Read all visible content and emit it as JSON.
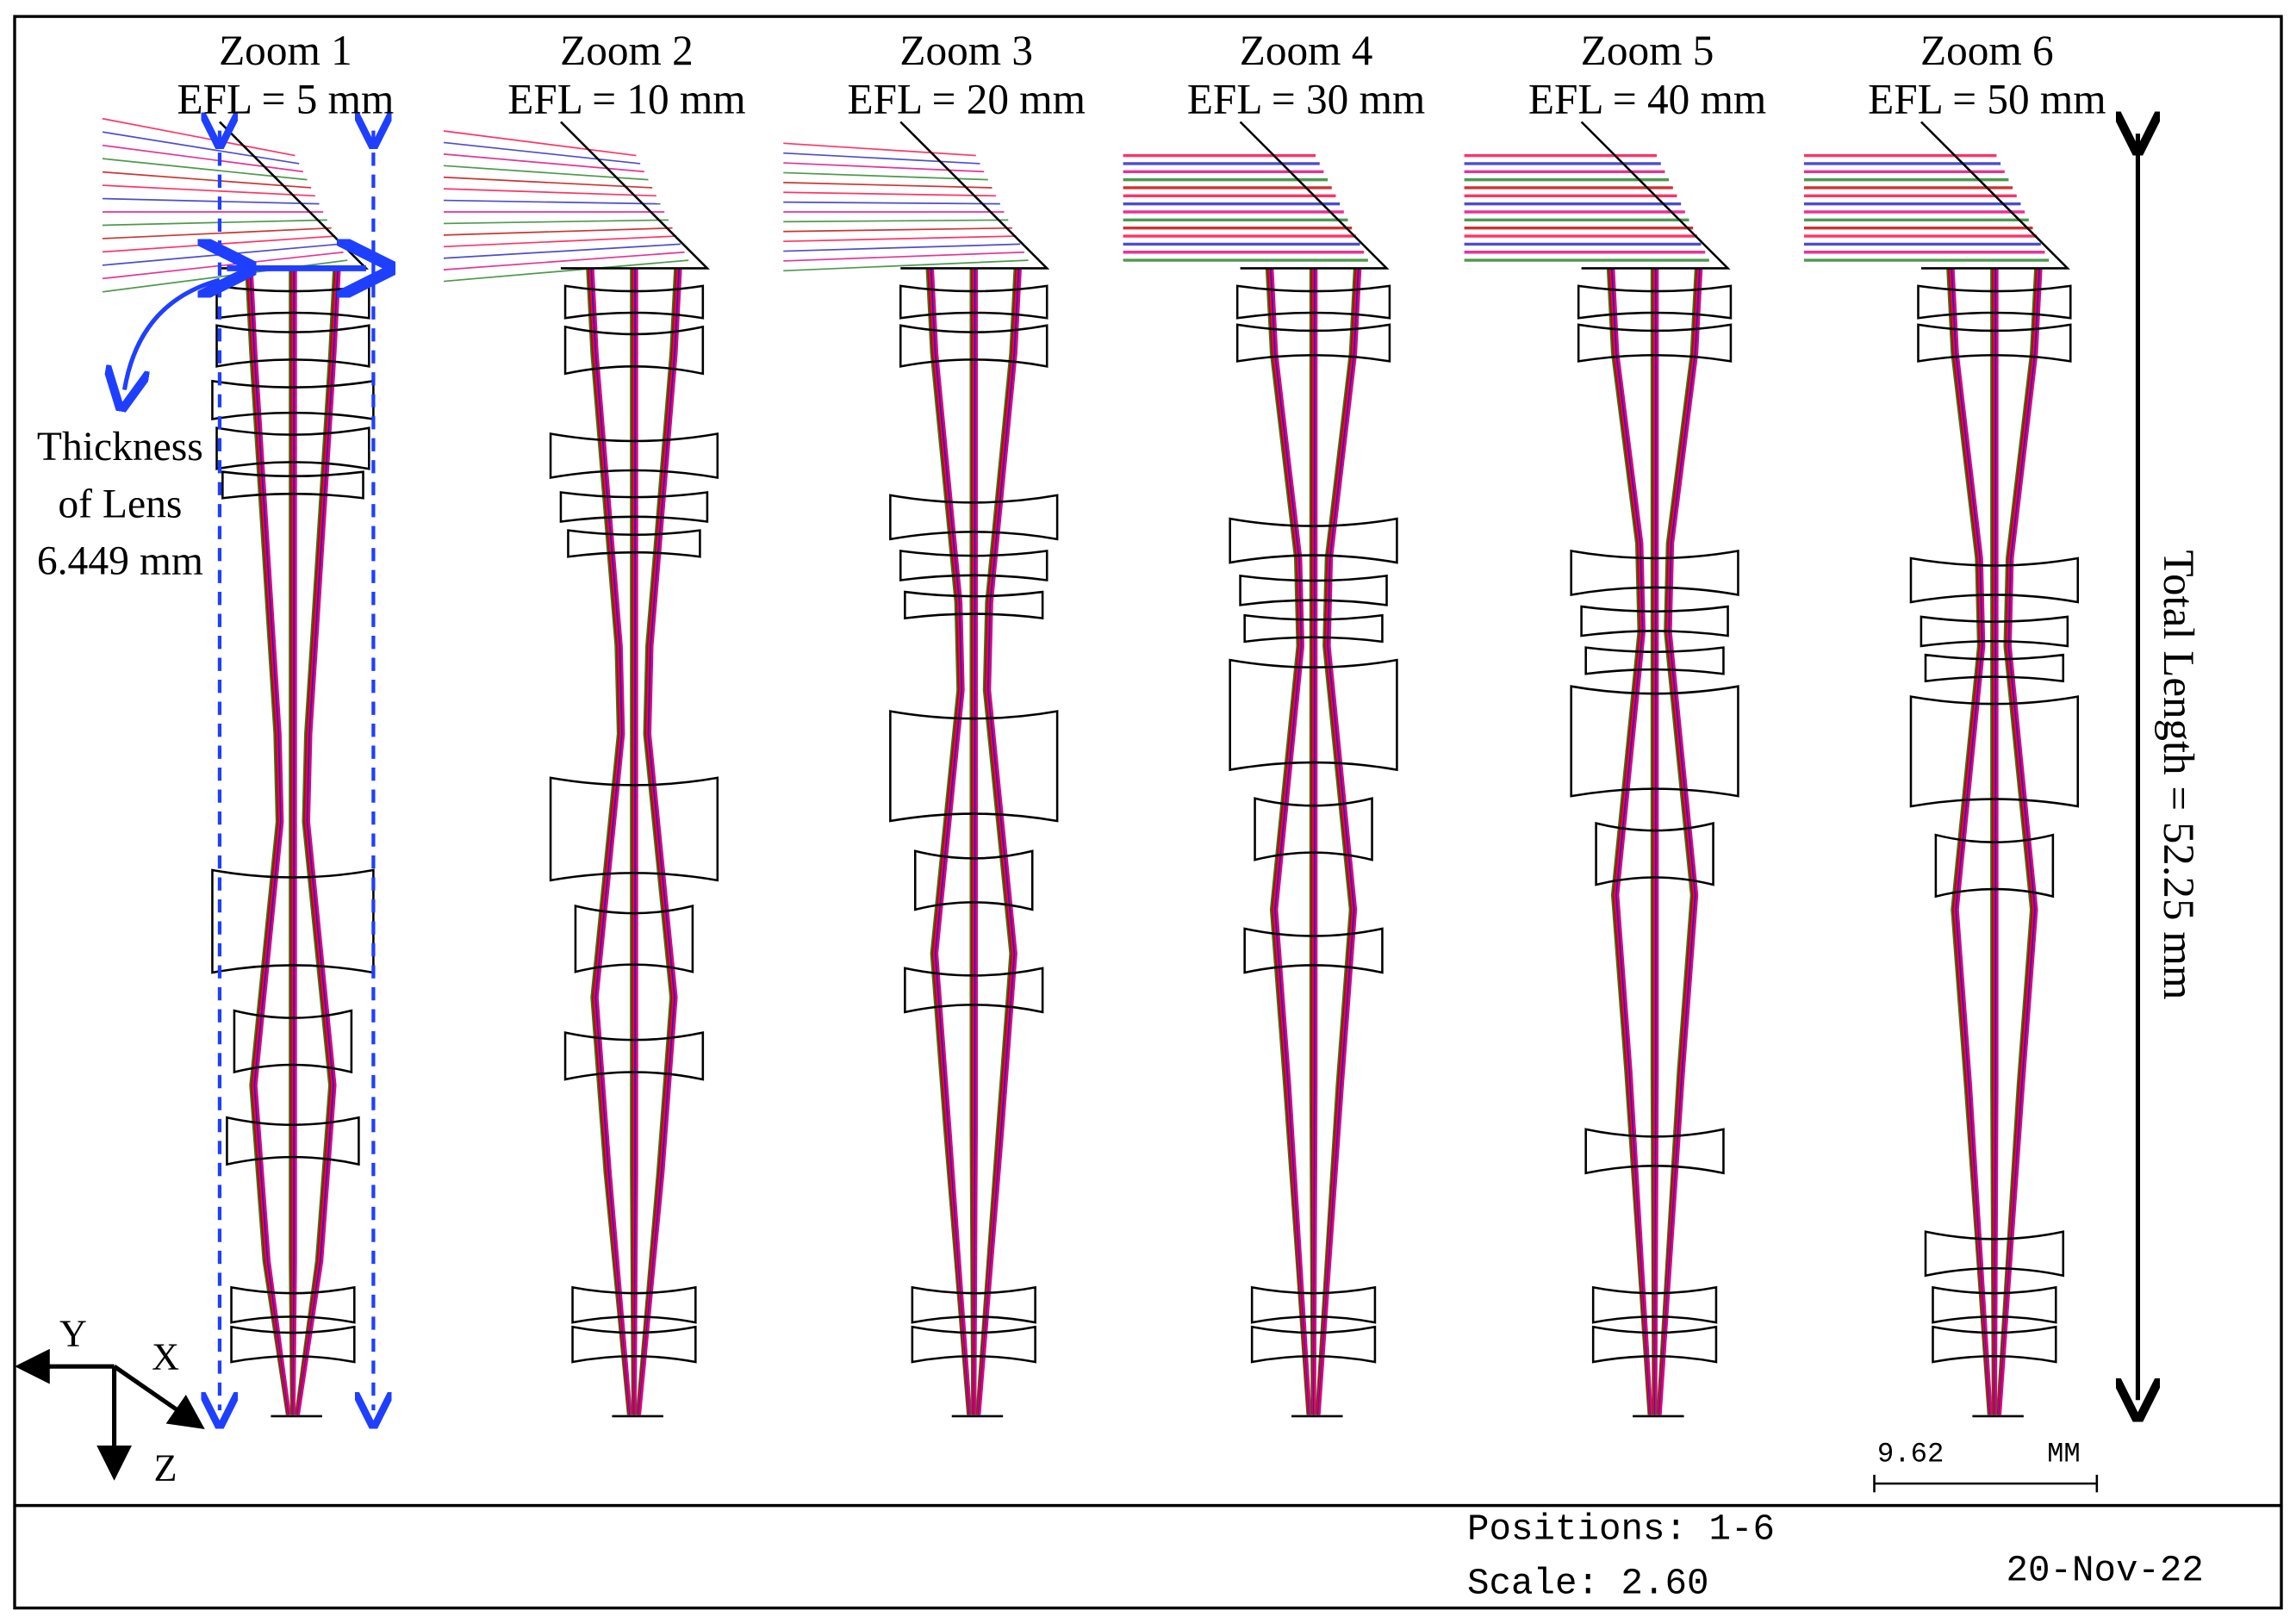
{
  "zooms": [
    {
      "title": "Zoom 1",
      "efl": "EFL = 5 mm"
    },
    {
      "title": "Zoom 2",
      "efl": "EFL = 10 mm"
    },
    {
      "title": "Zoom 3",
      "efl": "EFL = 20 mm"
    },
    {
      "title": "Zoom 4",
      "efl": "EFL = 30 mm"
    },
    {
      "title": "Zoom 5",
      "efl": "EFL = 40 mm"
    },
    {
      "title": "Zoom 6",
      "efl": "EFL = 50 mm"
    }
  ],
  "annotations": {
    "thickness": [
      "Thickness",
      "of Lens",
      "6.449 mm"
    ],
    "total_length": "Total Length = 52.25 mm"
  },
  "axes": {
    "y": "Y",
    "x": "X",
    "z": "Z"
  },
  "scale_bar": {
    "value": "9.62",
    "unit": "MM"
  },
  "footer": {
    "positions": "Positions: 1-6",
    "scale": "Scale: 2.60",
    "date": "20-Nov-22"
  }
}
